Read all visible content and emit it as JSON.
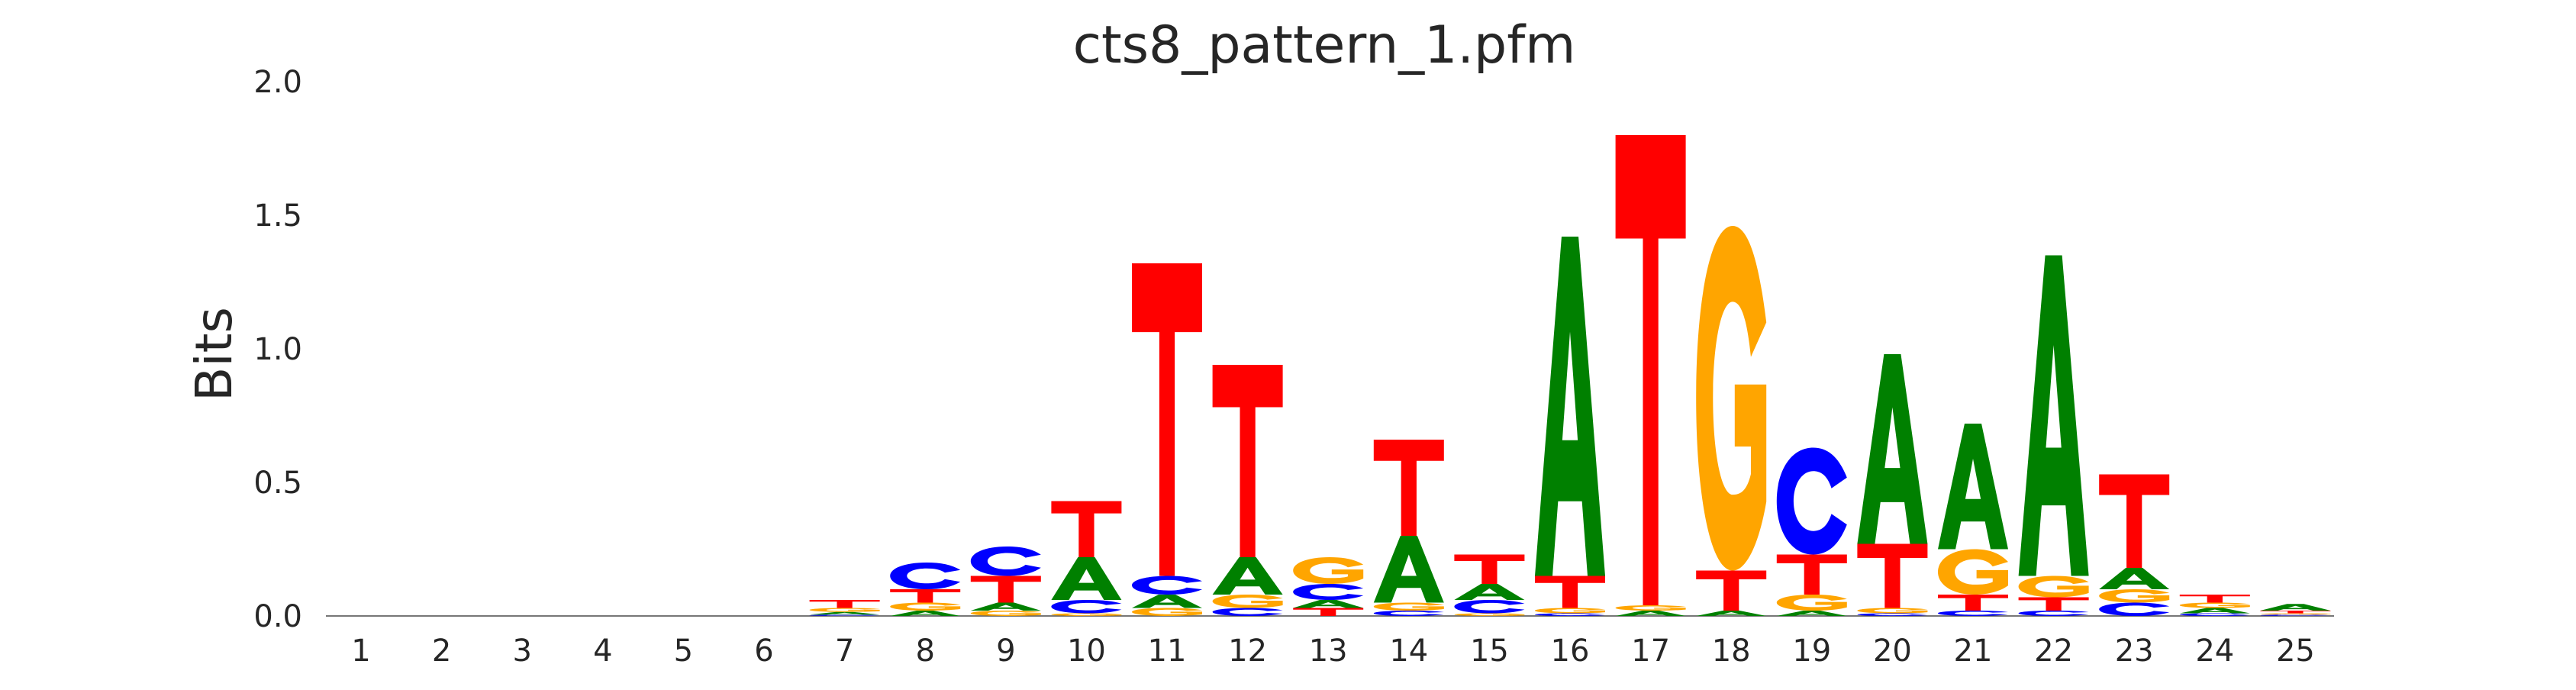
{
  "chart_data": {
    "type": "sequence-logo",
    "title": "cts8_pattern_1.pfm",
    "xlabel": "",
    "ylabel": "Bits",
    "ylim": [
      0,
      2.0
    ],
    "yticks": [
      "0.0",
      "0.5",
      "1.0",
      "1.5",
      "2.0"
    ],
    "grid": false,
    "legend": "none",
    "colors": {
      "A": "#008000",
      "C": "#0000ff",
      "G": "#ffa500",
      "T": "#ff0000"
    },
    "positions": [
      {
        "pos": "1",
        "letters": []
      },
      {
        "pos": "2",
        "letters": []
      },
      {
        "pos": "3",
        "letters": []
      },
      {
        "pos": "4",
        "letters": []
      },
      {
        "pos": "5",
        "letters": []
      },
      {
        "pos": "6",
        "letters": []
      },
      {
        "pos": "7",
        "letters": [
          {
            "base": "C",
            "bits": 0.005
          },
          {
            "base": "A",
            "bits": 0.01
          },
          {
            "base": "G",
            "bits": 0.015
          },
          {
            "base": "T",
            "bits": 0.03
          }
        ]
      },
      {
        "pos": "8",
        "letters": [
          {
            "base": "A",
            "bits": 0.02
          },
          {
            "base": "G",
            "bits": 0.03
          },
          {
            "base": "T",
            "bits": 0.05
          },
          {
            "base": "C",
            "bits": 0.1
          }
        ]
      },
      {
        "pos": "9",
        "letters": [
          {
            "base": "G",
            "bits": 0.02
          },
          {
            "base": "A",
            "bits": 0.03
          },
          {
            "base": "T",
            "bits": 0.1
          },
          {
            "base": "C",
            "bits": 0.11
          }
        ]
      },
      {
        "pos": "10",
        "letters": [
          {
            "base": "G",
            "bits": 0.01
          },
          {
            "base": "C",
            "bits": 0.05
          },
          {
            "base": "A",
            "bits": 0.16
          },
          {
            "base": "T",
            "bits": 0.21
          }
        ]
      },
      {
        "pos": "11",
        "letters": [
          {
            "base": "G",
            "bits": 0.03
          },
          {
            "base": "A",
            "bits": 0.05
          },
          {
            "base": "C",
            "bits": 0.07
          },
          {
            "base": "T",
            "bits": 1.17
          }
        ]
      },
      {
        "pos": "12",
        "letters": [
          {
            "base": "C",
            "bits": 0.03
          },
          {
            "base": "G",
            "bits": 0.05
          },
          {
            "base": "A",
            "bits": 0.14
          },
          {
            "base": "T",
            "bits": 0.72
          }
        ]
      },
      {
        "pos": "13",
        "letters": [
          {
            "base": "T",
            "bits": 0.03
          },
          {
            "base": "A",
            "bits": 0.03
          },
          {
            "base": "C",
            "bits": 0.06
          },
          {
            "base": "G",
            "bits": 0.1
          }
        ]
      },
      {
        "pos": "14",
        "letters": [
          {
            "base": "C",
            "bits": 0.02
          },
          {
            "base": "G",
            "bits": 0.03
          },
          {
            "base": "A",
            "bits": 0.25
          },
          {
            "base": "T",
            "bits": 0.36
          }
        ]
      },
      {
        "pos": "15",
        "letters": [
          {
            "base": "G",
            "bits": 0.01
          },
          {
            "base": "C",
            "bits": 0.05
          },
          {
            "base": "A",
            "bits": 0.06
          },
          {
            "base": "T",
            "bits": 0.11
          }
        ]
      },
      {
        "pos": "16",
        "letters": [
          {
            "base": "C",
            "bits": 0.01
          },
          {
            "base": "G",
            "bits": 0.02
          },
          {
            "base": "T",
            "bits": 0.12
          },
          {
            "base": "A",
            "bits": 1.27
          }
        ]
      },
      {
        "pos": "17",
        "letters": [
          {
            "base": "A",
            "bits": 0.02
          },
          {
            "base": "G",
            "bits": 0.02
          },
          {
            "base": "T",
            "bits": 1.76
          }
        ]
      },
      {
        "pos": "18",
        "letters": [
          {
            "base": "A",
            "bits": 0.02
          },
          {
            "base": "T",
            "bits": 0.15
          },
          {
            "base": "G",
            "bits": 1.29
          }
        ]
      },
      {
        "pos": "19",
        "letters": [
          {
            "base": "A",
            "bits": 0.02
          },
          {
            "base": "G",
            "bits": 0.06
          },
          {
            "base": "T",
            "bits": 0.15
          },
          {
            "base": "C",
            "bits": 0.4
          }
        ]
      },
      {
        "pos": "20",
        "letters": [
          {
            "base": "C",
            "bits": 0.01
          },
          {
            "base": "G",
            "bits": 0.02
          },
          {
            "base": "T",
            "bits": 0.24
          },
          {
            "base": "A",
            "bits": 0.71
          }
        ]
      },
      {
        "pos": "21",
        "letters": [
          {
            "base": "C",
            "bits": 0.02
          },
          {
            "base": "T",
            "bits": 0.06
          },
          {
            "base": "G",
            "bits": 0.17
          },
          {
            "base": "A",
            "bits": 0.47
          }
        ]
      },
      {
        "pos": "22",
        "letters": [
          {
            "base": "C",
            "bits": 0.02
          },
          {
            "base": "T",
            "bits": 0.05
          },
          {
            "base": "G",
            "bits": 0.08
          },
          {
            "base": "A",
            "bits": 1.2
          }
        ]
      },
      {
        "pos": "23",
        "letters": [
          {
            "base": "C",
            "bits": 0.05
          },
          {
            "base": "G",
            "bits": 0.05
          },
          {
            "base": "A",
            "bits": 0.08
          },
          {
            "base": "T",
            "bits": 0.35
          }
        ]
      },
      {
        "pos": "24",
        "letters": [
          {
            "base": "C",
            "bits": 0.01
          },
          {
            "base": "A",
            "bits": 0.02
          },
          {
            "base": "G",
            "bits": 0.02
          },
          {
            "base": "T",
            "bits": 0.03
          }
        ]
      },
      {
        "pos": "25",
        "letters": [
          {
            "base": "C",
            "bits": 0.005
          },
          {
            "base": "G",
            "bits": 0.005
          },
          {
            "base": "T",
            "bits": 0.01
          },
          {
            "base": "A",
            "bits": 0.025
          }
        ]
      }
    ]
  }
}
